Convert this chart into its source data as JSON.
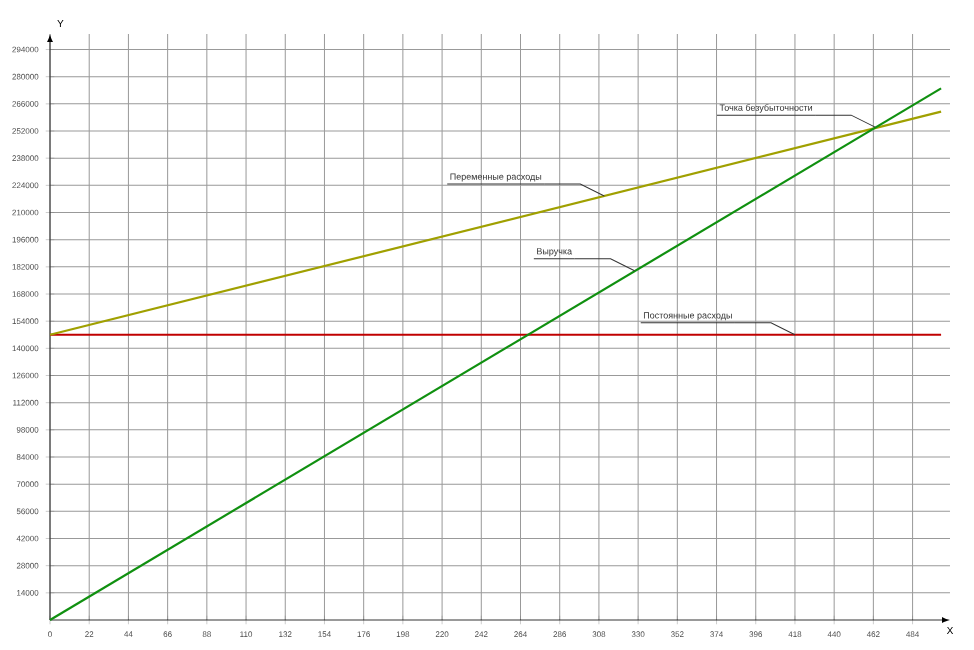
{
  "chart_data": {
    "type": "line",
    "xlabel": "X",
    "ylabel": "Y",
    "xlim": [
      0,
      505
    ],
    "ylim": [
      0,
      302000
    ],
    "xticks": [
      0,
      22,
      44,
      66,
      88,
      110,
      132,
      154,
      176,
      198,
      220,
      242,
      264,
      286,
      308,
      330,
      352,
      374,
      396,
      418,
      440,
      462,
      484
    ],
    "yticks": [
      14000,
      28000,
      42000,
      56000,
      70000,
      84000,
      98000,
      112000,
      126000,
      140000,
      154000,
      168000,
      182000,
      196000,
      210000,
      224000,
      238000,
      252000,
      266000,
      280000,
      294000
    ],
    "grid": true,
    "x": [
      0,
      500
    ],
    "series": [
      {
        "color": "#c00000",
        "values": [
          147000,
          147000
        ]
      },
      {
        "color": "#a0a000",
        "values": [
          147000,
          262000
        ]
      },
      {
        "color": "#109010",
        "values": [
          0,
          274000
        ]
      }
    ],
    "annotations": [
      {
        "text": "Точка безубыточности",
        "x": 463,
        "y": 254000
      },
      {
        "text": "Переменные расходы",
        "x": 311,
        "y": 218500
      },
      {
        "text": "Выручка",
        "x": 328,
        "y": 180000
      },
      {
        "text": "Постоянные расходы",
        "x": 418,
        "y": 147000
      }
    ]
  }
}
